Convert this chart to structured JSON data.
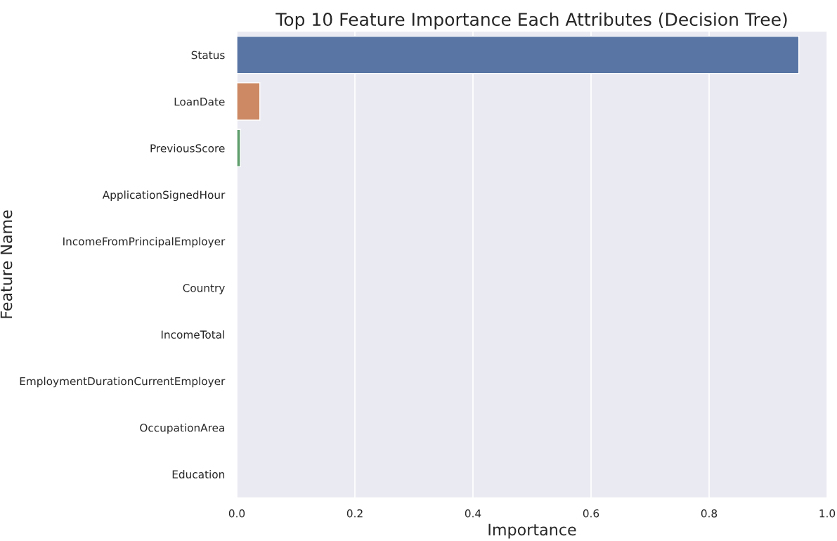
{
  "chart_data": {
    "type": "bar",
    "orientation": "horizontal",
    "title": "Top 10 Feature Importance Each Attributes (Decision Tree)",
    "xlabel": "Importance",
    "ylabel": "Feature Name",
    "categories": [
      "Status",
      "LoanDate",
      "PreviousScore",
      "ApplicationSignedHour",
      "IncomeFromPrincipalEmployer",
      "Country",
      "IncomeTotal",
      "EmploymentDurationCurrentEmployer",
      "OccupationArea",
      "Education"
    ],
    "values": [
      0.952,
      0.039,
      0.006,
      0,
      0,
      0,
      0,
      0,
      0,
      0
    ],
    "colors": [
      "#5875a4",
      "#cc8963",
      "#5f9e6e",
      null,
      null,
      null,
      null,
      null,
      null,
      null
    ],
    "xlim": [
      0,
      1.0
    ],
    "xticks": [
      {
        "value": 0,
        "label": "0.0"
      },
      0.2,
      0.4,
      0.6,
      0.8,
      {
        "value": 1.0,
        "label": "1.0"
      }
    ],
    "grid": "x"
  }
}
